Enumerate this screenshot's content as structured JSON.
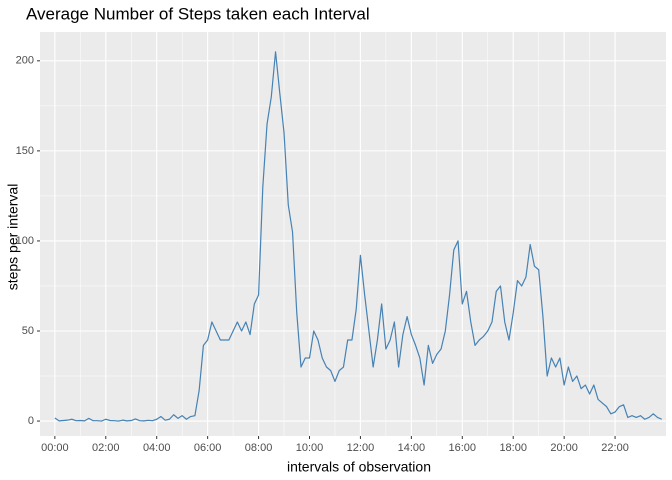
{
  "chart_data": {
    "type": "line",
    "title": "Average Number of Steps taken each Interval",
    "x_label": "intervals of observation",
    "y_label": "steps per interval",
    "x": [
      0,
      10,
      20,
      30,
      40,
      50,
      60,
      70,
      80,
      90,
      100,
      110,
      120,
      130,
      140,
      150,
      160,
      170,
      180,
      190,
      200,
      210,
      220,
      230,
      240,
      250,
      260,
      270,
      280,
      290,
      300,
      310,
      320,
      330,
      340,
      350,
      360,
      370,
      380,
      390,
      400,
      410,
      420,
      430,
      440,
      450,
      460,
      470,
      480,
      490,
      500,
      510,
      520,
      530,
      540,
      550,
      560,
      570,
      580,
      590,
      600,
      610,
      620,
      630,
      640,
      650,
      660,
      670,
      680,
      690,
      700,
      710,
      720,
      730,
      740,
      750,
      760,
      770,
      780,
      790,
      800,
      810,
      820,
      830,
      840,
      850,
      860,
      870,
      880,
      890,
      900,
      910,
      920,
      930,
      940,
      950,
      960,
      970,
      980,
      990,
      1000,
      1010,
      1020,
      1030,
      1040,
      1050,
      1060,
      1070,
      1080,
      1090,
      1100,
      1110,
      1120,
      1130,
      1140,
      1150,
      1160,
      1170,
      1180,
      1190,
      1200,
      1210,
      1220,
      1230,
      1240,
      1250,
      1260,
      1270,
      1280,
      1290,
      1300,
      1310,
      1320,
      1330,
      1340,
      1350,
      1360,
      1370,
      1380,
      1390,
      1400,
      1410,
      1420,
      1430
    ],
    "series": [
      {
        "name": "steps",
        "color": "#4682b4",
        "values": [
          1.7,
          0.1,
          0.3,
          0.5,
          1,
          0.2,
          0.3,
          0.1,
          1.5,
          0.2,
          0.2,
          0,
          1,
          0.3,
          0.2,
          0,
          0.5,
          0.1,
          0.3,
          1.2,
          0.2,
          0.1,
          0.4,
          0.2,
          1,
          2.5,
          0.5,
          1,
          3.5,
          1.5,
          3,
          1,
          2.5,
          3,
          17,
          42,
          45,
          55,
          50,
          45,
          45,
          45,
          50,
          55,
          50,
          55,
          48,
          65,
          70,
          130,
          165,
          180,
          205,
          182,
          160,
          120,
          105,
          60,
          30,
          35,
          35,
          50,
          45,
          35,
          30,
          28,
          22,
          28,
          30,
          45,
          45,
          62,
          92,
          70,
          50,
          30,
          45,
          65,
          40,
          45,
          55,
          30,
          48,
          58,
          48,
          42,
          35,
          20,
          42,
          32,
          37,
          40,
          50,
          70,
          95,
          100,
          65,
          72,
          55,
          42,
          45,
          47,
          50,
          55,
          72,
          75,
          55,
          45,
          60,
          78,
          75,
          80,
          98,
          86,
          84,
          58,
          25,
          35,
          30,
          35,
          20,
          30,
          22,
          25,
          18,
          20,
          15,
          20,
          12,
          10,
          8,
          4,
          5,
          8,
          9,
          2,
          3,
          2,
          3,
          1,
          2,
          4,
          2,
          1
        ]
      }
    ],
    "xlim": [
      -35,
      1440
    ],
    "xticks": [
      {
        "value": 0,
        "label": "00:00"
      },
      {
        "value": 120,
        "label": "02:00"
      },
      {
        "value": 240,
        "label": "04:00"
      },
      {
        "value": 360,
        "label": "06:00"
      },
      {
        "value": 480,
        "label": "08:00"
      },
      {
        "value": 600,
        "label": "10:00"
      },
      {
        "value": 720,
        "label": "12:00"
      },
      {
        "value": 840,
        "label": "14:00"
      },
      {
        "value": 960,
        "label": "16:00"
      },
      {
        "value": 1080,
        "label": "18:00"
      },
      {
        "value": 1200,
        "label": "20:00"
      },
      {
        "value": 1320,
        "label": "22:00"
      }
    ],
    "ylim": [
      -8.3,
      216
    ],
    "yticks": [
      0,
      50,
      100,
      150,
      200
    ],
    "grid": true
  }
}
